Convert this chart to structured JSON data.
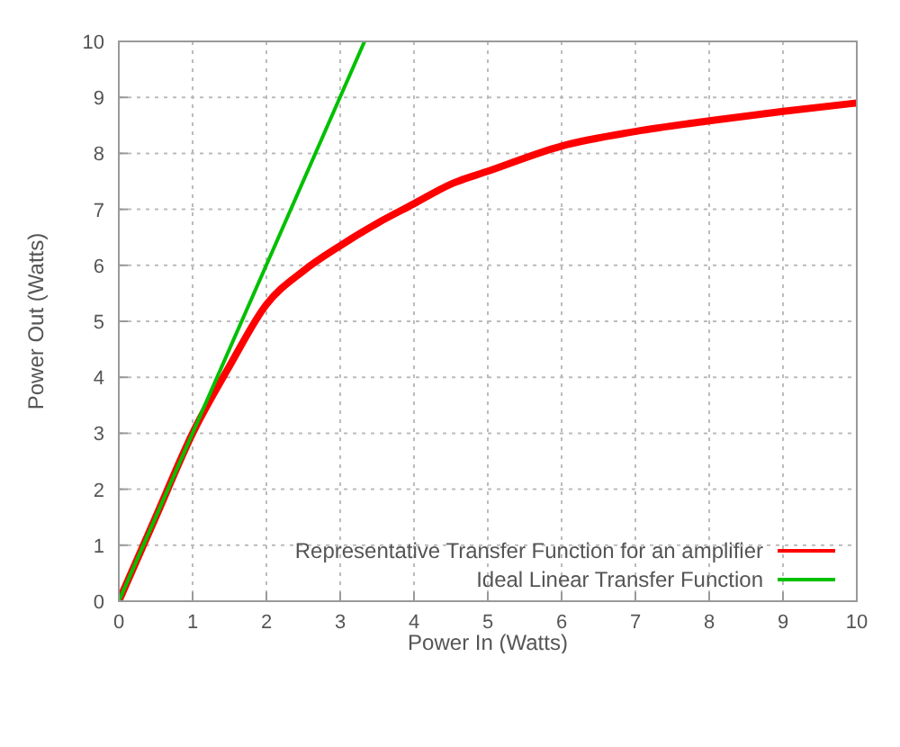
{
  "chart_data": {
    "type": "line",
    "xlabel": "Power In (Watts)",
    "ylabel": "Power Out (Watts)",
    "xlim": [
      0,
      10
    ],
    "ylim": [
      0,
      10
    ],
    "xticks": [
      0,
      1,
      2,
      3,
      4,
      5,
      6,
      7,
      8,
      9,
      10
    ],
    "yticks": [
      0,
      1,
      2,
      3,
      4,
      5,
      6,
      7,
      8,
      9,
      10
    ],
    "grid": true,
    "legend": "bottom right",
    "series": [
      {
        "name": "Representative Transfer Function for an amplifier",
        "color": "#ff0000",
        "x": [
          0,
          0.5,
          1,
          1.5,
          2,
          2.5,
          3,
          3.5,
          4,
          4.5,
          5,
          6,
          7,
          8,
          9,
          10
        ],
        "values": [
          0,
          1.5,
          3,
          4.2,
          5.3,
          5.9,
          6.35,
          6.75,
          7.1,
          7.45,
          7.68,
          8.13,
          8.39,
          8.58,
          8.75,
          8.9
        ]
      },
      {
        "name": "Ideal Linear Transfer Function",
        "color": "#00c000",
        "x": [
          0,
          3.33
        ],
        "values": [
          0,
          10
        ]
      }
    ]
  }
}
